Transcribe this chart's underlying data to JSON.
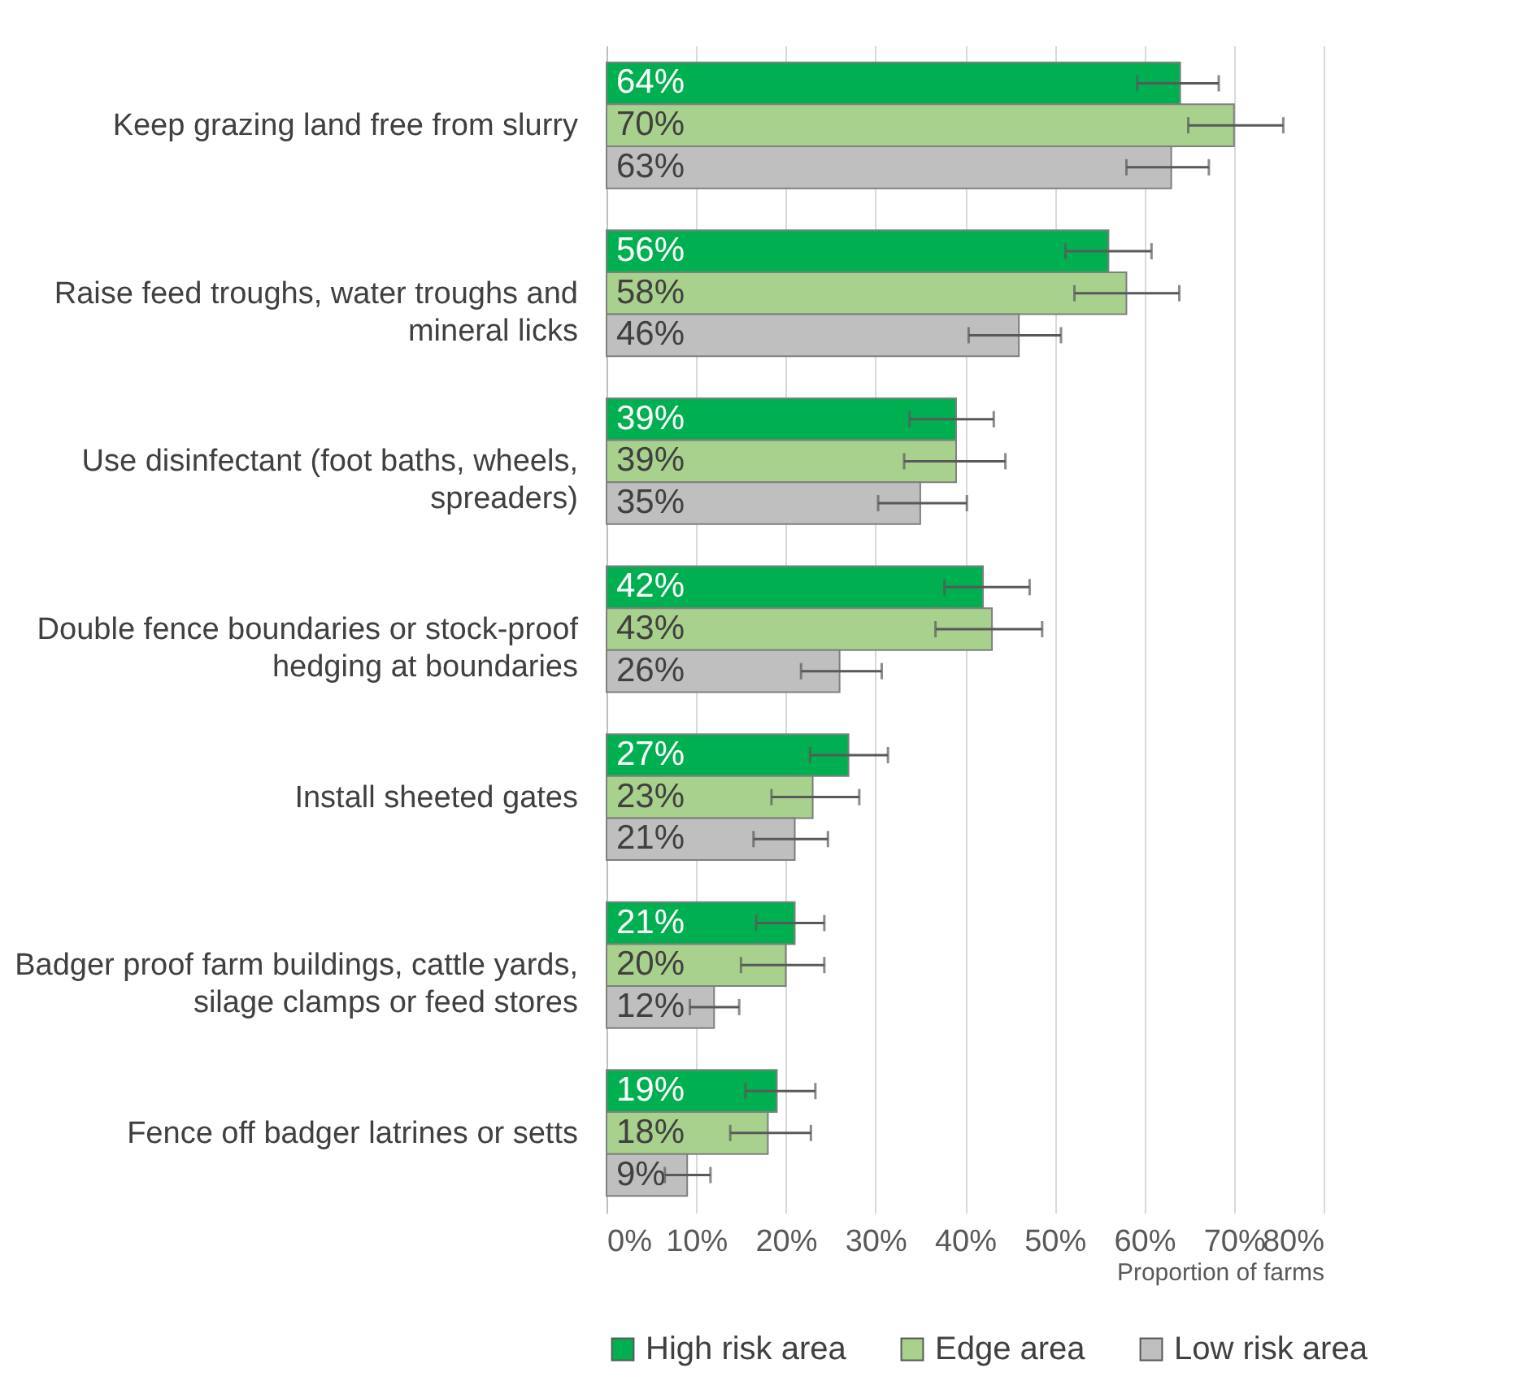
{
  "chart_data": {
    "type": "bar",
    "orientation": "horizontal",
    "xlabel": "Proportion of farms",
    "categories": [
      "Keep grazing land free from slurry",
      "Raise feed troughs, water troughs and mineral licks",
      "Use disinfectant (foot baths, wheels, spreaders)",
      "Double fence boundaries or stock-proof hedging at boundaries",
      "Install sheeted gates",
      "Badger proof farm buildings, cattle yards, silage clamps or feed stores",
      "Fence off badger latrines or setts"
    ],
    "series": [
      {
        "name": "High risk area",
        "color": "#00b050",
        "values": [
          64,
          56,
          39,
          42,
          27,
          21,
          19
        ],
        "value_labels": [
          "64%",
          "56%",
          "39%",
          "42%",
          "27%",
          "21%",
          "19%"
        ],
        "errors": [
          [
            59.2,
            68.3
          ],
          [
            51.2,
            60.8
          ],
          [
            33.8,
            43.2
          ],
          [
            37.7,
            47.2
          ],
          [
            22.7,
            31.4
          ],
          [
            16.7,
            24.3
          ],
          [
            15.5,
            23.3
          ]
        ]
      },
      {
        "name": "Edge area",
        "color": "#a9d18e",
        "values": [
          70,
          58,
          39,
          43,
          23,
          20,
          18
        ],
        "value_labels": [
          "70%",
          "58%",
          "39%",
          "43%",
          "23%",
          "20%",
          "18%"
        ],
        "errors": [
          [
            64.9,
            75.5
          ],
          [
            52.2,
            63.9
          ],
          [
            33.2,
            44.5
          ],
          [
            36.7,
            48.6
          ],
          [
            18.4,
            28.2
          ],
          [
            15.0,
            24.3
          ],
          [
            13.8,
            22.8
          ]
        ]
      },
      {
        "name": "Low risk area",
        "color": "#bfbfbf",
        "values": [
          63,
          46,
          35,
          26,
          21,
          12,
          9
        ],
        "value_labels": [
          "63%",
          "46%",
          "35%",
          "26%",
          "21%",
          "12%",
          "9%"
        ],
        "errors": [
          [
            58.0,
            67.2
          ],
          [
            40.4,
            50.7
          ],
          [
            30.3,
            40.2
          ],
          [
            21.7,
            30.7
          ],
          [
            16.4,
            24.7
          ],
          [
            9.3,
            14.8
          ],
          [
            6.5,
            11.6
          ]
        ]
      }
    ],
    "xlim": [
      0,
      80
    ],
    "xticks": [
      {
        "value": 0,
        "label": "0%"
      },
      {
        "value": 10,
        "label": "10%"
      },
      {
        "value": 20,
        "label": "20%"
      },
      {
        "value": 30,
        "label": "30%"
      },
      {
        "value": 40,
        "label": "40%"
      },
      {
        "value": 50,
        "label": "50%"
      },
      {
        "value": 60,
        "label": "60%"
      },
      {
        "value": 70,
        "label": "70%"
      },
      {
        "value": 80,
        "label": "80%"
      }
    ],
    "grid": "x",
    "legend": "bottom"
  }
}
